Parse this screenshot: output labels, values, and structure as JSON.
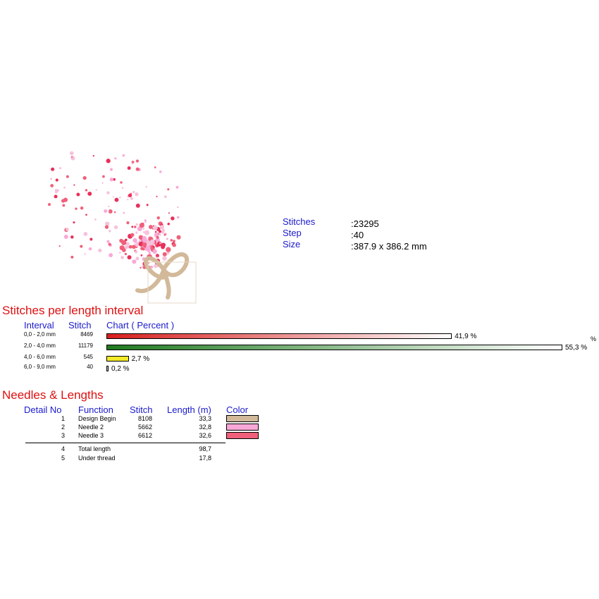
{
  "info": {
    "stitches_label": "Stitches",
    "stitches_value": ":23295",
    "step_label": "Step",
    "step_value": ":40",
    "size_label": "Size",
    "size_value": ":387.9 x 386.2 mm"
  },
  "interval_section": {
    "title": "Stitches per length interval",
    "col_interval": "Interval",
    "col_stitch": "Stitch",
    "col_chart": "Chart ( Percent )",
    "stray_percent": "%"
  },
  "chart_data": {
    "type": "bar",
    "title": "Stitches per length interval",
    "categories": [
      "0,0 - 2,0 mm",
      "2,0 - 4,0 mm",
      "4,0 - 6,0 mm",
      "6,0 - 9,0 mm"
    ],
    "stitches": [
      "8469",
      "11179",
      "545",
      "40"
    ],
    "values": [
      41.9,
      55.3,
      2.7,
      0.2
    ],
    "value_labels": [
      "41,9 %",
      "55,3 %",
      "2,7 %",
      "0,2 %"
    ],
    "colors": [
      "#d81e1e",
      "#1f7a1f",
      "#f2ea2a",
      "#cccccc"
    ]
  },
  "needles_section": {
    "title": "Needles & Lengths",
    "col_detail": "Detail No",
    "col_function": "Function",
    "col_stitch": "Stitch",
    "col_length": "Length (m)",
    "col_color": "Color",
    "rows": [
      {
        "no": "1",
        "function": "Design Begin",
        "stitch": "8108",
        "length": "33,3",
        "color": "#d2b99a"
      },
      {
        "no": "2",
        "function": "Needle 2",
        "stitch": "5662",
        "length": "32,8",
        "color": "#f9a9d8"
      },
      {
        "no": "3",
        "function": "Needle 3",
        "stitch": "6612",
        "length": "32,6",
        "color": "#f0607a"
      }
    ],
    "totals": [
      {
        "no": "4",
        "function": "Total length",
        "length": "98,7"
      },
      {
        "no": "5",
        "function": "Under thread",
        "length": "17,8"
      }
    ]
  }
}
